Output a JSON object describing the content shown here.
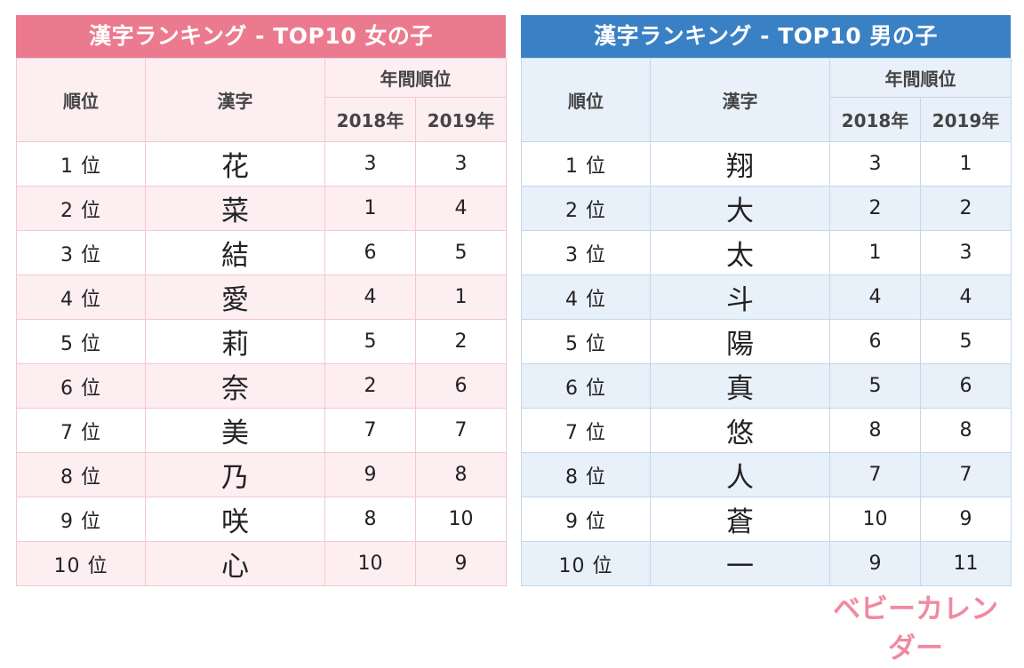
{
  "girls": {
    "title": "漢字ランキング - TOP10 女の子",
    "headers": {
      "rank": "順位",
      "kanji": "漢字",
      "yearly": "年間順位",
      "y2018": "2018年",
      "y2019": "2019年"
    },
    "rows": [
      {
        "rank": "1 位",
        "kanji": "花",
        "y2018": "3",
        "y2019": "3"
      },
      {
        "rank": "2 位",
        "kanji": "菜",
        "y2018": "1",
        "y2019": "4"
      },
      {
        "rank": "3 位",
        "kanji": "結",
        "y2018": "6",
        "y2019": "5"
      },
      {
        "rank": "4 位",
        "kanji": "愛",
        "y2018": "4",
        "y2019": "1"
      },
      {
        "rank": "5 位",
        "kanji": "莉",
        "y2018": "5",
        "y2019": "2"
      },
      {
        "rank": "6 位",
        "kanji": "奈",
        "y2018": "2",
        "y2019": "6"
      },
      {
        "rank": "7 位",
        "kanji": "美",
        "y2018": "7",
        "y2019": "7"
      },
      {
        "rank": "8 位",
        "kanji": "乃",
        "y2018": "9",
        "y2019": "8"
      },
      {
        "rank": "9 位",
        "kanji": "咲",
        "y2018": "8",
        "y2019": "10"
      },
      {
        "rank": "10 位",
        "kanji": "心",
        "y2018": "10",
        "y2019": "9"
      }
    ]
  },
  "boys": {
    "title": "漢字ランキング - TOP10 男の子",
    "headers": {
      "rank": "順位",
      "kanji": "漢字",
      "yearly": "年間順位",
      "y2018": "2018年",
      "y2019": "2019年"
    },
    "rows": [
      {
        "rank": "1 位",
        "kanji": "翔",
        "y2018": "3",
        "y2019": "1"
      },
      {
        "rank": "2 位",
        "kanji": "大",
        "y2018": "2",
        "y2019": "2"
      },
      {
        "rank": "3 位",
        "kanji": "太",
        "y2018": "1",
        "y2019": "3"
      },
      {
        "rank": "4 位",
        "kanji": "斗",
        "y2018": "4",
        "y2019": "4"
      },
      {
        "rank": "5 位",
        "kanji": "陽",
        "y2018": "6",
        "y2019": "5"
      },
      {
        "rank": "6 位",
        "kanji": "真",
        "y2018": "5",
        "y2019": "6"
      },
      {
        "rank": "7 位",
        "kanji": "悠",
        "y2018": "8",
        "y2019": "8"
      },
      {
        "rank": "8 位",
        "kanji": "人",
        "y2018": "7",
        "y2019": "7"
      },
      {
        "rank": "9 位",
        "kanji": "蒼",
        "y2018": "10",
        "y2019": "9"
      },
      {
        "rank": "10 位",
        "kanji": "一",
        "y2018": "9",
        "y2019": "11"
      }
    ]
  },
  "logo": {
    "text": "ベビーカレンダー",
    "color": "#f08aa0"
  },
  "colors": {
    "girls_accent": "#ec7a8e",
    "boys_accent": "#3a80c4"
  }
}
